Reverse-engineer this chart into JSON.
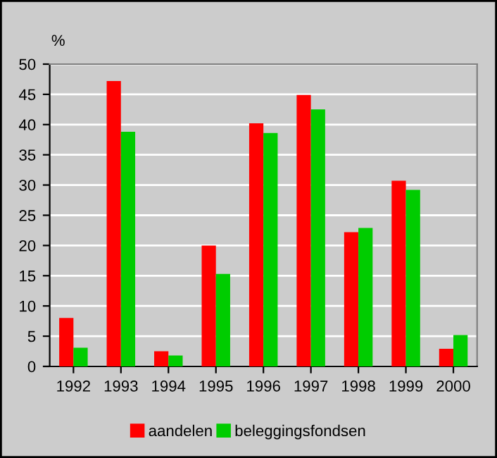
{
  "chart_data": {
    "type": "bar",
    "ylabel": "%",
    "categories": [
      "1992",
      "1993",
      "1994",
      "1995",
      "1996",
      "1997",
      "1998",
      "1999",
      "2000"
    ],
    "series": [
      {
        "name": "aandelen",
        "color": "#ff0000",
        "values": [
          8.0,
          47.2,
          2.5,
          20.0,
          40.2,
          44.9,
          22.2,
          30.7,
          2.9
        ]
      },
      {
        "name": "beleggingsfondsen",
        "color": "#00cc00",
        "values": [
          3.1,
          38.8,
          1.8,
          15.3,
          38.6,
          42.5,
          22.9,
          29.2,
          5.2
        ]
      }
    ],
    "ylim": [
      0,
      50
    ],
    "yticks": [
      0,
      5,
      10,
      15,
      20,
      25,
      30,
      35,
      40,
      45,
      50
    ],
    "grid": "y",
    "legend": "bottom"
  }
}
